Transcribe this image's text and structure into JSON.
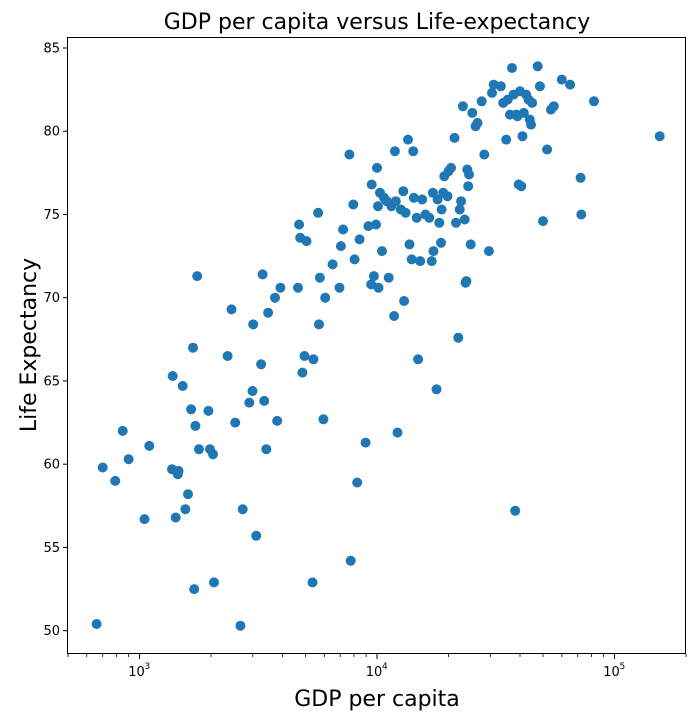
{
  "chart_data": {
    "type": "scatter",
    "title": "GDP per capita versus Life-expectancy",
    "xlabel": "GDP per capita",
    "ylabel": "Life Expectancy",
    "xscale": "log",
    "xlim": [
      500,
      200000
    ],
    "ylim": [
      48.6,
      85.6
    ],
    "grid": false,
    "color": "#1f77b4",
    "xticks": [
      {
        "value": 1000,
        "base": "10",
        "exp": "3"
      },
      {
        "value": 10000,
        "base": "10",
        "exp": "4"
      },
      {
        "value": 100000,
        "base": "10",
        "exp": "5"
      }
    ],
    "yticks": [
      50,
      55,
      60,
      65,
      70,
      75,
      80,
      85
    ],
    "points": [
      [
        660,
        50.4
      ],
      [
        700,
        59.8
      ],
      [
        790,
        59.0
      ],
      [
        850,
        62.0
      ],
      [
        900,
        60.3
      ],
      [
        1050,
        56.7
      ],
      [
        1100,
        61.1
      ],
      [
        1370,
        59.7
      ],
      [
        1380,
        65.3
      ],
      [
        1420,
        56.8
      ],
      [
        1450,
        59.4
      ],
      [
        1460,
        59.6
      ],
      [
        1520,
        64.7
      ],
      [
        1560,
        57.3
      ],
      [
        1600,
        58.2
      ],
      [
        1650,
        63.3
      ],
      [
        1680,
        67.0
      ],
      [
        1700,
        52.5
      ],
      [
        1720,
        62.3
      ],
      [
        1750,
        71.3
      ],
      [
        1780,
        60.9
      ],
      [
        1950,
        63.2
      ],
      [
        1980,
        60.9
      ],
      [
        2040,
        60.6
      ],
      [
        2060,
        52.9
      ],
      [
        2350,
        66.5
      ],
      [
        2440,
        69.3
      ],
      [
        2530,
        62.5
      ],
      [
        2660,
        50.3
      ],
      [
        2720,
        57.3
      ],
      [
        2900,
        63.7
      ],
      [
        2990,
        64.4
      ],
      [
        3010,
        68.4
      ],
      [
        3100,
        55.7
      ],
      [
        3250,
        66.0
      ],
      [
        3300,
        71.4
      ],
      [
        3350,
        63.8
      ],
      [
        3420,
        60.9
      ],
      [
        3480,
        69.1
      ],
      [
        3720,
        70.0
      ],
      [
        3800,
        62.6
      ],
      [
        3920,
        70.6
      ],
      [
        4650,
        70.6
      ],
      [
        4700,
        74.4
      ],
      [
        4750,
        73.6
      ],
      [
        4850,
        65.5
      ],
      [
        4950,
        66.5
      ],
      [
        5050,
        73.4
      ],
      [
        5350,
        52.9
      ],
      [
        5400,
        66.3
      ],
      [
        5650,
        75.1
      ],
      [
        5700,
        68.4
      ],
      [
        5750,
        71.2
      ],
      [
        5950,
        62.7
      ],
      [
        6050,
        70.0
      ],
      [
        6500,
        72.0
      ],
      [
        6950,
        70.6
      ],
      [
        7050,
        73.1
      ],
      [
        7200,
        74.1
      ],
      [
        7650,
        78.6
      ],
      [
        7750,
        54.2
      ],
      [
        7950,
        75.6
      ],
      [
        8050,
        72.3
      ],
      [
        8250,
        58.9
      ],
      [
        8450,
        73.5
      ],
      [
        8950,
        61.3
      ],
      [
        9200,
        74.3
      ],
      [
        9450,
        70.8
      ],
      [
        9500,
        76.8
      ],
      [
        9700,
        71.3
      ],
      [
        9900,
        74.4
      ],
      [
        10000,
        77.8
      ],
      [
        10100,
        75.5
      ],
      [
        10150,
        70.6
      ],
      [
        10300,
        76.3
      ],
      [
        10500,
        72.8
      ],
      [
        10700,
        76.0
      ],
      [
        11000,
        75.8
      ],
      [
        11200,
        71.2
      ],
      [
        11500,
        75.5
      ],
      [
        11800,
        68.9
      ],
      [
        11900,
        78.8
      ],
      [
        12000,
        75.8
      ],
      [
        12200,
        61.9
      ],
      [
        12600,
        75.3
      ],
      [
        12900,
        76.4
      ],
      [
        13000,
        69.8
      ],
      [
        13200,
        75.1
      ],
      [
        13500,
        79.5
      ],
      [
        13700,
        73.2
      ],
      [
        14000,
        72.3
      ],
      [
        14200,
        78.8
      ],
      [
        14300,
        76.0
      ],
      [
        14700,
        74.8
      ],
      [
        14900,
        66.3
      ],
      [
        15200,
        72.2
      ],
      [
        15500,
        75.9
      ],
      [
        16000,
        75.0
      ],
      [
        16600,
        74.8
      ],
      [
        17000,
        72.2
      ],
      [
        17200,
        76.3
      ],
      [
        17300,
        72.8
      ],
      [
        17800,
        64.5
      ],
      [
        18000,
        75.9
      ],
      [
        18300,
        74.5
      ],
      [
        18600,
        73.3
      ],
      [
        18700,
        75.3
      ],
      [
        19000,
        76.3
      ],
      [
        19200,
        77.3
      ],
      [
        19800,
        76.1
      ],
      [
        20000,
        77.6
      ],
      [
        20500,
        77.8
      ],
      [
        21200,
        79.6
      ],
      [
        21500,
        74.5
      ],
      [
        22000,
        67.6
      ],
      [
        22300,
        75.3
      ],
      [
        22600,
        75.8
      ],
      [
        23000,
        81.5
      ],
      [
        23400,
        74.7
      ],
      [
        23600,
        70.9
      ],
      [
        23800,
        71.0
      ],
      [
        24000,
        77.7
      ],
      [
        24200,
        76.7
      ],
      [
        24400,
        77.4
      ],
      [
        24800,
        73.2
      ],
      [
        25200,
        81.1
      ],
      [
        26000,
        80.3
      ],
      [
        26500,
        80.5
      ],
      [
        27600,
        81.8
      ],
      [
        28300,
        78.6
      ],
      [
        29600,
        72.8
      ],
      [
        30500,
        82.3
      ],
      [
        31000,
        82.8
      ],
      [
        33200,
        82.7
      ],
      [
        34000,
        81.7
      ],
      [
        35000,
        79.5
      ],
      [
        35500,
        81.9
      ],
      [
        36300,
        81.0
      ],
      [
        37000,
        83.8
      ],
      [
        37600,
        82.2
      ],
      [
        38200,
        57.2
      ],
      [
        38600,
        81.0
      ],
      [
        39000,
        80.9
      ],
      [
        39500,
        76.8
      ],
      [
        40000,
        82.4
      ],
      [
        40500,
        76.7
      ],
      [
        41000,
        79.7
      ],
      [
        41500,
        81.1
      ],
      [
        42500,
        82.2
      ],
      [
        43500,
        81.9
      ],
      [
        44000,
        80.7
      ],
      [
        44500,
        80.4
      ],
      [
        45000,
        81.7
      ],
      [
        47500,
        83.9
      ],
      [
        48500,
        82.7
      ],
      [
        50000,
        74.6
      ],
      [
        52000,
        78.9
      ],
      [
        54000,
        81.3
      ],
      [
        55500,
        81.5
      ],
      [
        60000,
        83.1
      ],
      [
        65000,
        82.8
      ],
      [
        72000,
        77.2
      ],
      [
        72500,
        75.0
      ],
      [
        82000,
        81.8
      ],
      [
        155000,
        79.7
      ]
    ]
  }
}
